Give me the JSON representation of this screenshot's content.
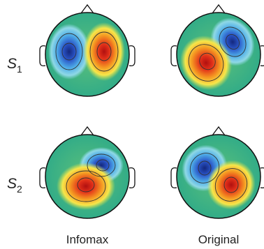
{
  "rows": [
    {
      "label": "S",
      "subscript": "1"
    },
    {
      "label": "S",
      "subscript": "2"
    }
  ],
  "columns": [
    "Infomax",
    "Original"
  ],
  "colors": {
    "background": "#2fb487",
    "positive": "#c81e14",
    "positive_mid": "#f2a81e",
    "negative": "#1d3c9e",
    "negative_mid": "#5fb2e6",
    "outline": "#111111"
  }
}
